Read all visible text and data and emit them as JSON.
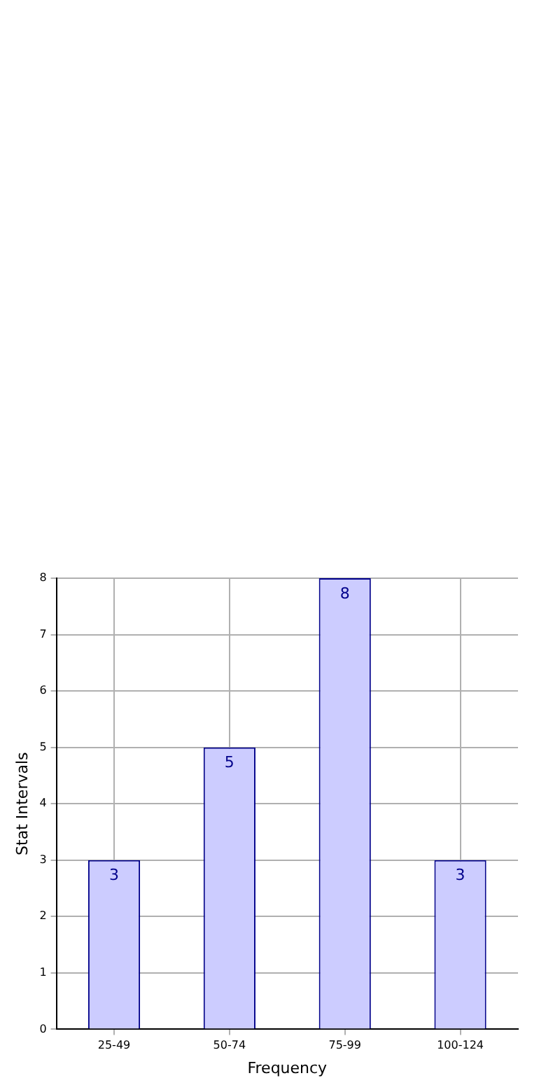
{
  "chart_data": {
    "type": "bar",
    "xlabel": "Frequency",
    "ylabel": "Stat Intervals",
    "categories": [
      "25-49",
      "50-74",
      "75-99",
      "100-124"
    ],
    "values": [
      3,
      5,
      8,
      3
    ],
    "color": "#ccccff",
    "ylim": [
      0,
      8
    ],
    "yticks": [
      0,
      1,
      2,
      3,
      4,
      5,
      6,
      7,
      8
    ],
    "grid": true,
    "data_labels": true
  }
}
